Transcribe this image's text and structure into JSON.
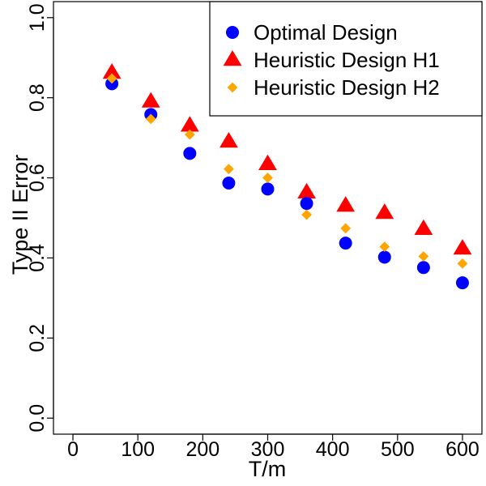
{
  "chart_data": {
    "type": "scatter",
    "title": "",
    "xlabel": "T/m",
    "ylabel": "Type II Error",
    "xlim": [
      -30,
      630
    ],
    "ylim": [
      -0.04,
      1.04
    ],
    "xticks": [
      0,
      100,
      200,
      300,
      400,
      500,
      600
    ],
    "xtick_labels": [
      "0",
      "100",
      "200",
      "300",
      "400",
      "500",
      "600"
    ],
    "yticks": [
      0.0,
      0.2,
      0.4,
      0.6,
      0.8,
      1.0
    ],
    "ytick_labels": [
      "0.0",
      "0.2",
      "0.4",
      "0.6",
      "0.8",
      "1.0"
    ],
    "grid": false,
    "legend_position": "top-right",
    "series": [
      {
        "name": "Optimal Design",
        "marker": "circle",
        "color": "#0000ff",
        "x": [
          60,
          120,
          180,
          240,
          300,
          360,
          420,
          480,
          540,
          600
        ],
        "y": [
          0.835,
          0.758,
          0.661,
          0.587,
          0.572,
          0.536,
          0.437,
          0.402,
          0.376,
          0.338
        ]
      },
      {
        "name": "Heuristic Design H1",
        "marker": "triangle",
        "color": "#ff0000",
        "x": [
          60,
          120,
          180,
          240,
          300,
          360,
          420,
          480,
          540,
          600
        ],
        "y": [
          0.862,
          0.79,
          0.73,
          0.69,
          0.634,
          0.563,
          0.53,
          0.512,
          0.472,
          0.423
        ]
      },
      {
        "name": "Heuristic Design H2",
        "marker": "diamond",
        "color": "#ffa500",
        "x": [
          60,
          120,
          180,
          240,
          300,
          360,
          420,
          480,
          540,
          600
        ],
        "y": [
          0.848,
          0.747,
          0.708,
          0.622,
          0.6,
          0.508,
          0.474,
          0.428,
          0.404,
          0.386
        ]
      }
    ]
  }
}
